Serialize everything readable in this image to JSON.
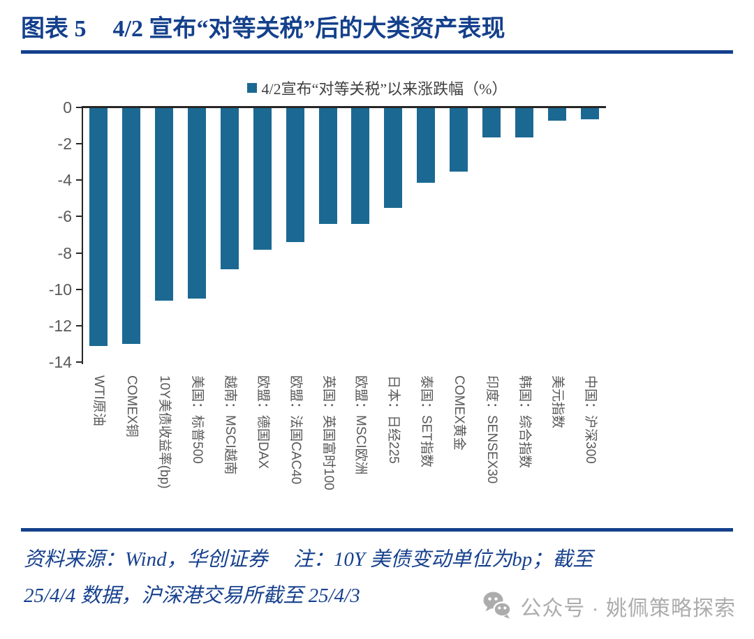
{
  "header": {
    "figure_label": "图表 5",
    "title": "4/2 宣布“对等关税”后的大类资产表现"
  },
  "chart_data": {
    "type": "bar",
    "legend": "4/2宣布“对等关税”以来涨跌幅（%）",
    "legend_position": "top",
    "categories": [
      "WTI原油",
      "COMEX铜",
      "10Y美债收益率(bp)",
      "美国：标普500",
      "越南：MSCI越南",
      "欧盟：德国DAX",
      "欧盟：法国CAC40",
      "英国：英国富时100",
      "欧盟：MSCI欧洲",
      "日本：日经225",
      "泰国：SET指数",
      "COMEX黄金",
      "印度：SENSEX30",
      "韩国：综合指数",
      "美元指数",
      "中国：沪深300"
    ],
    "values": [
      -13.1,
      -13.0,
      -10.6,
      -10.5,
      -8.9,
      -7.8,
      -7.4,
      -6.4,
      -6.4,
      -5.5,
      -4.1,
      -3.5,
      -1.6,
      -1.6,
      -0.7,
      -0.6
    ],
    "xlabel": "",
    "ylabel": "",
    "ylim": [
      -14,
      0
    ],
    "yticks": [
      0,
      -2,
      -4,
      -6,
      -8,
      -10,
      -12,
      -14
    ],
    "grid": false,
    "bar_color": "#1B6992",
    "axis_color": "#262626",
    "tick_label_color": "#595959"
  },
  "footer": {
    "line1": "资料来源：Wind，华创证券　 注：10Y 美债变动单位为bp；截至",
    "line2": "25/4/4 数据，沪深港交易所截至 25/4/3"
  },
  "watermark": {
    "icon": "wechat-icon",
    "text": "公众号 · 姚佩策略探索",
    "color": "#ACACAC"
  }
}
